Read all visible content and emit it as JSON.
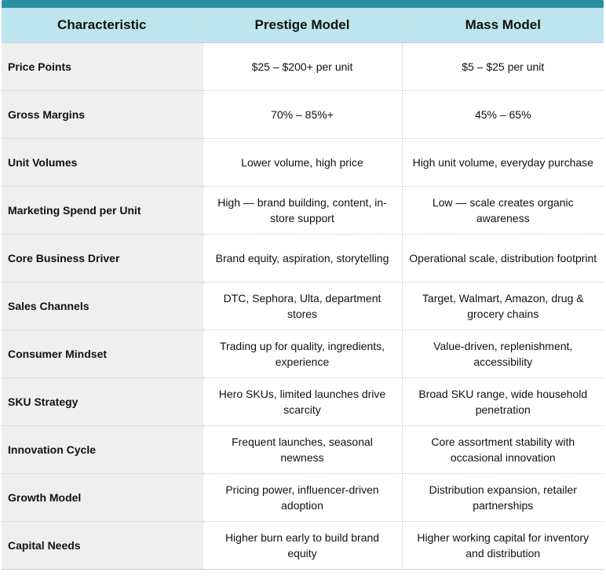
{
  "table": {
    "headers": [
      "Characteristic",
      "Prestige Model",
      "Mass Model"
    ],
    "rows": [
      {
        "characteristic": "Price Points",
        "prestige": "$25 – $200+ per unit",
        "mass": "$5 – $25 per unit"
      },
      {
        "characteristic": "Gross Margins",
        "prestige": "70% – 85%+",
        "mass": "45% – 65%"
      },
      {
        "characteristic": "Unit Volumes",
        "prestige": "Lower volume, high price",
        "mass": "High unit volume, everyday purchase"
      },
      {
        "characteristic": "Marketing Spend per Unit",
        "prestige": "High — brand building, content, in-store support",
        "mass": "Low — scale creates organic awareness"
      },
      {
        "characteristic": "Core Business Driver",
        "prestige": "Brand equity, aspiration, storytelling",
        "mass": "Operational scale, distribution footprint"
      },
      {
        "characteristic": "Sales Channels",
        "prestige": "DTC, Sephora, Ulta, department stores",
        "mass": "Target, Walmart, Amazon, drug & grocery chains"
      },
      {
        "characteristic": "Consumer Mindset",
        "prestige": "Trading up for quality, ingredients, experience",
        "mass": "Value-driven, replenishment, accessibility"
      },
      {
        "characteristic": "SKU Strategy",
        "prestige": "Hero SKUs, limited launches drive scarcity",
        "mass": "Broad SKU range, wide household penetration"
      },
      {
        "characteristic": "Innovation Cycle",
        "prestige": "Frequent launches, seasonal newness",
        "mass": "Core assortment stability with occasional innovation"
      },
      {
        "characteristic": "Growth Model",
        "prestige": "Pricing power, influencer-driven adoption",
        "mass": "Distribution expansion, retailer partnerships"
      },
      {
        "characteristic": "Capital Needs",
        "prestige": "Higher burn early to build brand equity",
        "mass": "Higher working capital for inventory and distribution"
      }
    ]
  },
  "colors": {
    "accent_bar": "#2b8fa3",
    "header_bg": "#bde5ee",
    "label_bg": "#efefef"
  }
}
